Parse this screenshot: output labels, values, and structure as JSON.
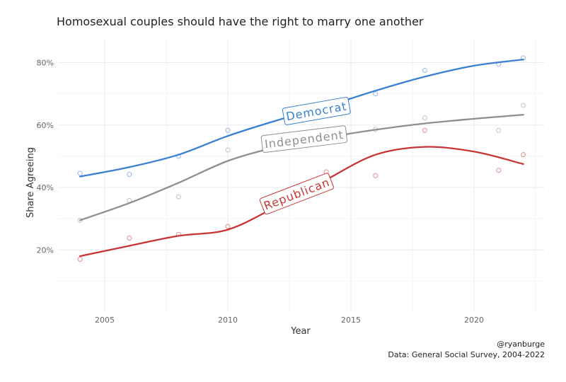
{
  "chart_data": {
    "type": "line",
    "title": "Homosexual couples should have the right to marry one another",
    "xlabel": "Year",
    "ylabel": "Share Agreeing",
    "xlim": [
      2004,
      2022
    ],
    "ylim": [
      0,
      85
    ],
    "x_ticks": [
      2005,
      2010,
      2015,
      2020
    ],
    "y_ticks": [
      20,
      40,
      60,
      80
    ],
    "x_tick_labels": [
      "2005",
      "2010",
      "2015",
      "2020"
    ],
    "y_tick_labels": [
      "20%",
      "40%",
      "60%",
      "80%"
    ],
    "grid": true,
    "series": [
      {
        "name": "Democrat",
        "color": "#3a7fd0",
        "points": {
          "x": [
            2004,
            2006,
            2008,
            2010,
            2016,
            2018,
            2021,
            2022
          ],
          "y": [
            44.5,
            44.2,
            50,
            58.3,
            70,
            77.5,
            79.5,
            81.5
          ]
        },
        "smooth": {
          "x": [
            2004,
            2006,
            2008,
            2010,
            2012,
            2014,
            2016,
            2018,
            2020,
            2022
          ],
          "y": [
            43.5,
            46.5,
            50.5,
            56.5,
            61.5,
            66,
            71,
            75.5,
            79,
            81
          ]
        }
      },
      {
        "name": "Independent",
        "color": "#8c9090",
        "points": {
          "x": [
            2004,
            2006,
            2008,
            2010,
            2016,
            2018,
            2021,
            2022
          ],
          "y": [
            29.5,
            35.8,
            37,
            52,
            58.6,
            62.3,
            58.3,
            66.3
          ]
        },
        "smooth": {
          "x": [
            2004,
            2006,
            2008,
            2010,
            2012,
            2014,
            2016,
            2018,
            2020,
            2022
          ],
          "y": [
            29.5,
            35,
            41.5,
            48.5,
            53,
            56,
            58.5,
            60.5,
            62,
            63.3
          ]
        }
      },
      {
        "name": "Republican",
        "color": "#c83434",
        "points": {
          "x": [
            2004,
            2006,
            2008,
            2010,
            2014,
            2016,
            2018,
            2021,
            2022
          ],
          "y": [
            17,
            23.8,
            25,
            27.5,
            45,
            43.8,
            58.3,
            45.5,
            50.5
          ]
        },
        "smooth": {
          "x": [
            2004,
            2006,
            2008,
            2010,
            2012,
            2014,
            2016,
            2018,
            2020,
            2022
          ],
          "y": [
            18,
            21.3,
            24.5,
            26.5,
            34,
            42.5,
            50.5,
            53,
            51.5,
            47.5
          ]
        }
      }
    ],
    "caption": [
      "@ryanburge",
      "Data: General Social Survey, 2004-2022"
    ]
  }
}
